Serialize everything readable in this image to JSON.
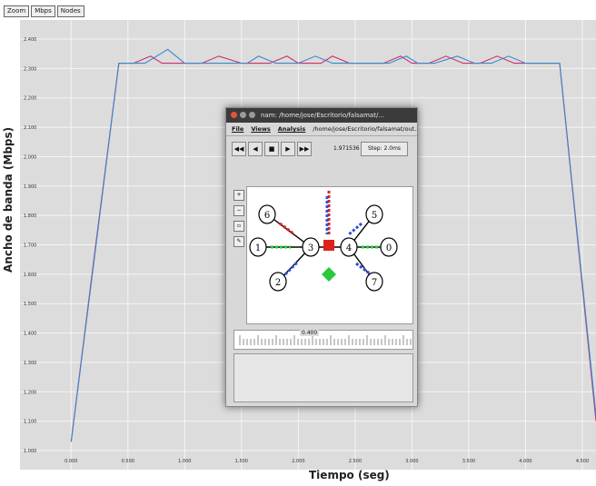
{
  "chart_data": {
    "type": "line",
    "title": "",
    "xlabel": "Tiempo (seg)",
    "ylabel": "Ancho de banda (Mbps)",
    "x_ticks": [
      "0.000",
      "0.500",
      "1.000",
      "1.500",
      "2.000",
      "2.500",
      "3.000",
      "3.500",
      "4.000",
      "4.500"
    ],
    "y_ticks": [
      "1.000",
      "1.100",
      "1.200",
      "1.300",
      "1.400",
      "1.500",
      "1.600",
      "1.700",
      "1.800",
      "1.900",
      "2.000",
      "2.100",
      "2.200",
      "2.300",
      "2.400"
    ],
    "xlim": [
      -0.45,
      4.62
    ],
    "ylim": [
      0.935,
      2.465
    ],
    "grid": true,
    "series": [
      {
        "color": "#cc2e6b",
        "x": [
          0.0,
          0.2,
          0.42,
          0.55,
          0.7,
          0.8,
          1.0,
          1.15,
          1.3,
          1.5,
          1.6,
          1.75,
          1.9,
          2.0,
          2.2,
          2.3,
          2.45,
          2.6,
          2.75,
          2.9,
          3.0,
          3.15,
          3.3,
          3.45,
          3.6,
          3.75,
          3.9,
          4.0,
          4.15,
          4.3,
          4.62
        ],
        "y": [
          1.03,
          1.65,
          2.318,
          2.318,
          2.342,
          2.318,
          2.318,
          2.318,
          2.342,
          2.318,
          2.318,
          2.318,
          2.342,
          2.318,
          2.318,
          2.342,
          2.318,
          2.318,
          2.318,
          2.342,
          2.318,
          2.318,
          2.342,
          2.318,
          2.318,
          2.342,
          2.318,
          2.318,
          2.318,
          2.318,
          1.1
        ]
      },
      {
        "color": "#3a86c8",
        "x": [
          0.0,
          0.2,
          0.42,
          0.55,
          0.65,
          0.85,
          1.0,
          1.2,
          1.35,
          1.55,
          1.65,
          1.8,
          2.0,
          2.15,
          2.3,
          2.5,
          2.65,
          2.8,
          2.95,
          3.05,
          3.2,
          3.4,
          3.55,
          3.7,
          3.85,
          4.0,
          4.1,
          4.3,
          4.62
        ],
        "y": [
          1.03,
          1.64,
          2.318,
          2.318,
          2.318,
          2.365,
          2.318,
          2.318,
          2.318,
          2.318,
          2.342,
          2.318,
          2.318,
          2.342,
          2.318,
          2.318,
          2.318,
          2.318,
          2.342,
          2.318,
          2.318,
          2.342,
          2.318,
          2.318,
          2.342,
          2.318,
          2.318,
          2.318,
          1.12
        ]
      }
    ]
  },
  "chart_buttons": [
    "Zoom",
    "Mbps",
    "Nodes"
  ],
  "nam": {
    "title": "nam: /home/jose/Escritorio/falsamat/...",
    "menu": [
      "File",
      "Views",
      "Analysis",
      "/home/jose/Escritorio/falsamat/out.nam"
    ],
    "time_label": "1.971536",
    "step_label": "Step: 2.0ms",
    "timeline_value": "0.400",
    "nodes": [
      {
        "id": "0",
        "label": "0"
      },
      {
        "id": "1",
        "label": "1"
      },
      {
        "id": "2",
        "label": "2"
      },
      {
        "id": "3",
        "label": "3"
      },
      {
        "id": "4",
        "label": "4"
      },
      {
        "id": "5",
        "label": "5"
      },
      {
        "id": "6",
        "label": "6"
      },
      {
        "id": "7",
        "label": "7"
      }
    ],
    "colors": {
      "red": "#e0201c",
      "green": "#29c93a",
      "blue": "#2f4fd6",
      "link": "#000000"
    }
  }
}
